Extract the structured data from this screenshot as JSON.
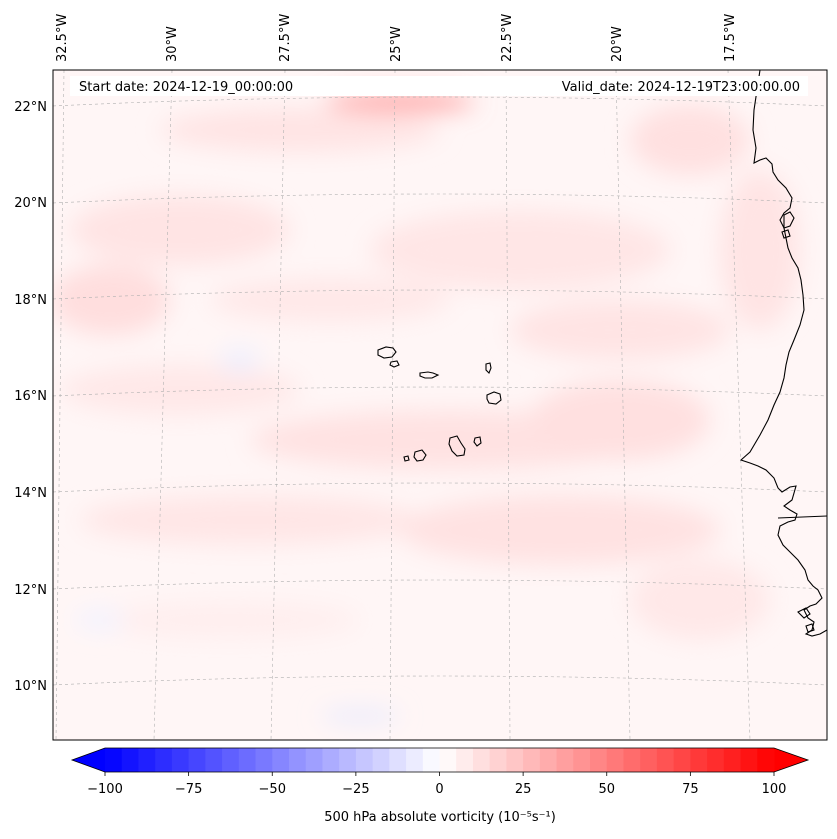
{
  "header": {
    "start_date": "Start date: 2024-12-19_00:00:00",
    "valid_date": "Valid_date: 2024-12-19T23:00:00.00"
  },
  "longitude_labels": [
    "32.5°W",
    "30°W",
    "27.5°W",
    "25°W",
    "22.5°W",
    "20°W",
    "17.5°W"
  ],
  "latitude_labels": [
    "22°N",
    "20°N",
    "18°N",
    "16°N",
    "14°N",
    "12°N",
    "10°N"
  ],
  "colorbar": {
    "tick_labels": [
      "−100",
      "−75",
      "−50",
      "−25",
      "0",
      "25",
      "50",
      "75",
      "100"
    ],
    "label": "500 hPa absolute vorticity (10⁻⁵s⁻¹)",
    "min": -100,
    "max": 100,
    "low_color": "#0000ff",
    "mid_color": "#ffffff",
    "high_color": "#ff0000"
  },
  "colors": {
    "coastline": "#000000",
    "gridline": "#b0b0b0",
    "background_tint": "#fff6f6"
  }
}
